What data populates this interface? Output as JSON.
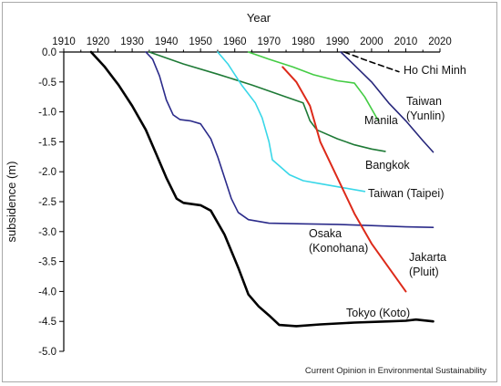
{
  "chart_data": {
    "type": "line",
    "xlabel": "Year",
    "ylabel": "subsidence (m)",
    "credit": "Current Opinion in Environmental Sustainability",
    "x_ticks": [
      "1910",
      "1920",
      "1930",
      "1940",
      "1950",
      "1960",
      "1970",
      "1980",
      "1990",
      "2000",
      "2010",
      "2020"
    ],
    "y_ticks": [
      "0.0",
      "-0.5",
      "-1.0",
      "-1.5",
      "-2.0",
      "-2.5",
      "-3.0",
      "-3.5",
      "-4.0",
      "-4.5",
      "-5.0"
    ],
    "xlim": [
      1910,
      2020
    ],
    "ylim": [
      -5.0,
      0.0
    ],
    "x_axis_position": "top",
    "grid": false,
    "legend": "none (series labelled directly on the plot)",
    "series": [
      {
        "name": "Tokyo (Koto)",
        "color": "#000000",
        "label_lines": [
          "Tokyo (Koto)"
        ],
        "points": [
          [
            1918,
            0.0
          ],
          [
            1922,
            -0.25
          ],
          [
            1926,
            -0.55
          ],
          [
            1930,
            -0.9
          ],
          [
            1934,
            -1.3
          ],
          [
            1937,
            -1.7
          ],
          [
            1940,
            -2.1
          ],
          [
            1943,
            -2.45
          ],
          [
            1945,
            -2.52
          ],
          [
            1950,
            -2.56
          ],
          [
            1953,
            -2.65
          ],
          [
            1957,
            -3.05
          ],
          [
            1961,
            -3.6
          ],
          [
            1964,
            -4.05
          ],
          [
            1967,
            -4.25
          ],
          [
            1970,
            -4.4
          ],
          [
            1973,
            -4.56
          ],
          [
            1978,
            -4.58
          ],
          [
            1985,
            -4.55
          ],
          [
            1995,
            -4.52
          ],
          [
            2005,
            -4.5
          ],
          [
            2010,
            -4.49
          ],
          [
            2013,
            -4.47
          ],
          [
            2018,
            -4.5
          ]
        ]
      },
      {
        "name": "Osaka (Konohana)",
        "color": "#2b2b8a",
        "label_lines": [
          "Osaka",
          "(Konohana)"
        ],
        "points": [
          [
            1934,
            0.0
          ],
          [
            1936,
            -0.12
          ],
          [
            1938,
            -0.4
          ],
          [
            1940,
            -0.8
          ],
          [
            1942,
            -1.05
          ],
          [
            1944,
            -1.13
          ],
          [
            1947,
            -1.15
          ],
          [
            1950,
            -1.2
          ],
          [
            1953,
            -1.45
          ],
          [
            1955,
            -1.75
          ],
          [
            1957,
            -2.1
          ],
          [
            1959,
            -2.45
          ],
          [
            1961,
            -2.68
          ],
          [
            1964,
            -2.8
          ],
          [
            1970,
            -2.86
          ],
          [
            1980,
            -2.87
          ],
          [
            1990,
            -2.88
          ],
          [
            2000,
            -2.9
          ],
          [
            2010,
            -2.92
          ],
          [
            2018,
            -2.93
          ]
        ]
      },
      {
        "name": "Bangkok",
        "color": "#1e7a36",
        "label_lines": [
          "Bangkok"
        ],
        "points": [
          [
            1935,
            0.0
          ],
          [
            1945,
            -0.2
          ],
          [
            1955,
            -0.37
          ],
          [
            1965,
            -0.55
          ],
          [
            1975,
            -0.75
          ],
          [
            1980,
            -0.85
          ],
          [
            1981,
            -1.0
          ],
          [
            1982,
            -1.15
          ],
          [
            1984,
            -1.3
          ],
          [
            1990,
            -1.45
          ],
          [
            1995,
            -1.55
          ],
          [
            2000,
            -1.62
          ],
          [
            2004,
            -1.66
          ]
        ]
      },
      {
        "name": "Taiwan (Taipei)",
        "color": "#39d7e8",
        "label_lines": [
          "Taiwan (Taipei)"
        ],
        "points": [
          [
            1955,
            0.0
          ],
          [
            1958,
            -0.2
          ],
          [
            1962,
            -0.55
          ],
          [
            1966,
            -0.85
          ],
          [
            1968,
            -1.1
          ],
          [
            1970,
            -1.5
          ],
          [
            1971,
            -1.8
          ],
          [
            1973,
            -1.9
          ],
          [
            1976,
            -2.05
          ],
          [
            1980,
            -2.15
          ],
          [
            1985,
            -2.2
          ],
          [
            1992,
            -2.27
          ],
          [
            1998,
            -2.33
          ]
        ]
      },
      {
        "name": "Manila",
        "color": "#44cc44",
        "label_lines": [
          "Manila"
        ],
        "points": [
          [
            1964,
            0.0
          ],
          [
            1970,
            -0.12
          ],
          [
            1977,
            -0.25
          ],
          [
            1983,
            -0.38
          ],
          [
            1990,
            -0.48
          ],
          [
            1995,
            -0.52
          ],
          [
            1998,
            -0.75
          ],
          [
            2002,
            -1.15
          ]
        ]
      },
      {
        "name": "Jakarta (Pluit)",
        "color": "#dd2a1a",
        "label_lines": [
          "Jakarta",
          "(Pluit)"
        ],
        "points": [
          [
            1974,
            -0.25
          ],
          [
            1978,
            -0.5
          ],
          [
            1982,
            -0.9
          ],
          [
            1985,
            -1.5
          ],
          [
            1990,
            -2.1
          ],
          [
            1995,
            -2.7
          ],
          [
            2000,
            -3.2
          ],
          [
            2005,
            -3.6
          ],
          [
            2010,
            -4.0
          ]
        ]
      },
      {
        "name": "Taiwan (Yunlin)",
        "color": "#26267a",
        "label_lines": [
          "Taiwan",
          "(Yunlin)"
        ],
        "points": [
          [
            1991,
            0.0
          ],
          [
            1995,
            -0.22
          ],
          [
            2000,
            -0.5
          ],
          [
            2005,
            -0.85
          ],
          [
            2010,
            -1.15
          ],
          [
            2015,
            -1.48
          ],
          [
            2018,
            -1.67
          ]
        ]
      },
      {
        "name": "Ho Chi Minh",
        "color": "#000000",
        "dashed": true,
        "label_lines": [
          "Ho Chi Minh"
        ],
        "points": [
          [
            1992,
            0.0
          ],
          [
            1998,
            -0.13
          ],
          [
            2004,
            -0.25
          ],
          [
            2008,
            -0.33
          ]
        ]
      }
    ]
  }
}
